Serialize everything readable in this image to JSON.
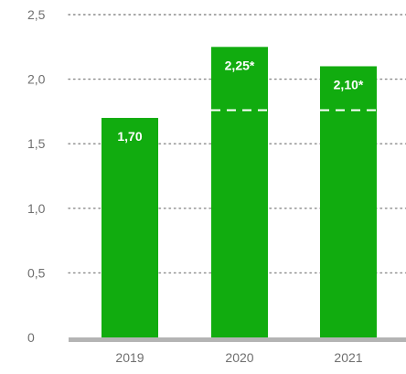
{
  "chart_data": {
    "type": "bar",
    "categories": [
      "2019",
      "2020",
      "2021"
    ],
    "values": [
      1.7,
      2.25,
      2.1
    ],
    "data_labels": [
      "1,70",
      "2,25*",
      "2,10*"
    ],
    "reference_line_value": 1.76,
    "reference_line_applies_to": [
      "2020",
      "2021"
    ],
    "title": "",
    "xlabel": "",
    "ylabel": "",
    "ylim": [
      0,
      2.5
    ],
    "yticks": [
      0,
      0.5,
      1.0,
      1.5,
      2.0,
      2.5
    ],
    "ytick_labels": [
      "0",
      "0,5",
      "1,0",
      "1,5",
      "2,0",
      "2,5"
    ],
    "grid": "horizontal dotted",
    "legend": "none",
    "colors": {
      "bar": "#11ac0f",
      "grid": "#8a8a8a",
      "axis": "#b4b4b4",
      "reference_line": "#ffffff"
    }
  }
}
